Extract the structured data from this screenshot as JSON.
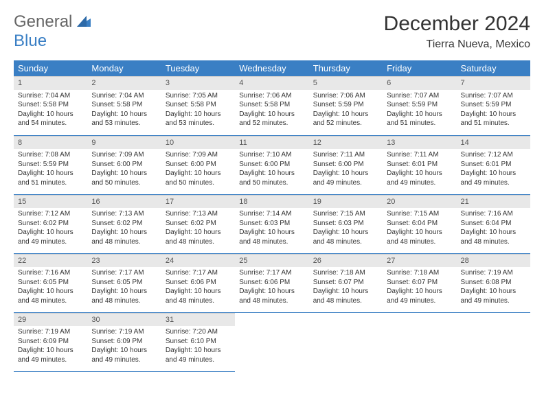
{
  "logo": {
    "line1": "General",
    "line2": "Blue"
  },
  "title": "December 2024",
  "location": "Tierra Nueva, Mexico",
  "colors": {
    "header_bg": "#3a7fc4",
    "header_text": "#ffffff",
    "daynum_bg": "#e8e8e8",
    "border": "#3a7fc4",
    "text": "#333333",
    "background": "#ffffff"
  },
  "weekdays": [
    "Sunday",
    "Monday",
    "Tuesday",
    "Wednesday",
    "Thursday",
    "Friday",
    "Saturday"
  ],
  "days": [
    {
      "n": 1,
      "sunrise": "7:04 AM",
      "sunset": "5:58 PM",
      "dayh": 10,
      "daym": 54
    },
    {
      "n": 2,
      "sunrise": "7:04 AM",
      "sunset": "5:58 PM",
      "dayh": 10,
      "daym": 53
    },
    {
      "n": 3,
      "sunrise": "7:05 AM",
      "sunset": "5:58 PM",
      "dayh": 10,
      "daym": 53
    },
    {
      "n": 4,
      "sunrise": "7:06 AM",
      "sunset": "5:58 PM",
      "dayh": 10,
      "daym": 52
    },
    {
      "n": 5,
      "sunrise": "7:06 AM",
      "sunset": "5:59 PM",
      "dayh": 10,
      "daym": 52
    },
    {
      "n": 6,
      "sunrise": "7:07 AM",
      "sunset": "5:59 PM",
      "dayh": 10,
      "daym": 51
    },
    {
      "n": 7,
      "sunrise": "7:07 AM",
      "sunset": "5:59 PM",
      "dayh": 10,
      "daym": 51
    },
    {
      "n": 8,
      "sunrise": "7:08 AM",
      "sunset": "5:59 PM",
      "dayh": 10,
      "daym": 51
    },
    {
      "n": 9,
      "sunrise": "7:09 AM",
      "sunset": "6:00 PM",
      "dayh": 10,
      "daym": 50
    },
    {
      "n": 10,
      "sunrise": "7:09 AM",
      "sunset": "6:00 PM",
      "dayh": 10,
      "daym": 50
    },
    {
      "n": 11,
      "sunrise": "7:10 AM",
      "sunset": "6:00 PM",
      "dayh": 10,
      "daym": 50
    },
    {
      "n": 12,
      "sunrise": "7:11 AM",
      "sunset": "6:00 PM",
      "dayh": 10,
      "daym": 49
    },
    {
      "n": 13,
      "sunrise": "7:11 AM",
      "sunset": "6:01 PM",
      "dayh": 10,
      "daym": 49
    },
    {
      "n": 14,
      "sunrise": "7:12 AM",
      "sunset": "6:01 PM",
      "dayh": 10,
      "daym": 49
    },
    {
      "n": 15,
      "sunrise": "7:12 AM",
      "sunset": "6:02 PM",
      "dayh": 10,
      "daym": 49
    },
    {
      "n": 16,
      "sunrise": "7:13 AM",
      "sunset": "6:02 PM",
      "dayh": 10,
      "daym": 48
    },
    {
      "n": 17,
      "sunrise": "7:13 AM",
      "sunset": "6:02 PM",
      "dayh": 10,
      "daym": 48
    },
    {
      "n": 18,
      "sunrise": "7:14 AM",
      "sunset": "6:03 PM",
      "dayh": 10,
      "daym": 48
    },
    {
      "n": 19,
      "sunrise": "7:15 AM",
      "sunset": "6:03 PM",
      "dayh": 10,
      "daym": 48
    },
    {
      "n": 20,
      "sunrise": "7:15 AM",
      "sunset": "6:04 PM",
      "dayh": 10,
      "daym": 48
    },
    {
      "n": 21,
      "sunrise": "7:16 AM",
      "sunset": "6:04 PM",
      "dayh": 10,
      "daym": 48
    },
    {
      "n": 22,
      "sunrise": "7:16 AM",
      "sunset": "6:05 PM",
      "dayh": 10,
      "daym": 48
    },
    {
      "n": 23,
      "sunrise": "7:17 AM",
      "sunset": "6:05 PM",
      "dayh": 10,
      "daym": 48
    },
    {
      "n": 24,
      "sunrise": "7:17 AM",
      "sunset": "6:06 PM",
      "dayh": 10,
      "daym": 48
    },
    {
      "n": 25,
      "sunrise": "7:17 AM",
      "sunset": "6:06 PM",
      "dayh": 10,
      "daym": 48
    },
    {
      "n": 26,
      "sunrise": "7:18 AM",
      "sunset": "6:07 PM",
      "dayh": 10,
      "daym": 48
    },
    {
      "n": 27,
      "sunrise": "7:18 AM",
      "sunset": "6:07 PM",
      "dayh": 10,
      "daym": 49
    },
    {
      "n": 28,
      "sunrise": "7:19 AM",
      "sunset": "6:08 PM",
      "dayh": 10,
      "daym": 49
    },
    {
      "n": 29,
      "sunrise": "7:19 AM",
      "sunset": "6:09 PM",
      "dayh": 10,
      "daym": 49
    },
    {
      "n": 30,
      "sunrise": "7:19 AM",
      "sunset": "6:09 PM",
      "dayh": 10,
      "daym": 49
    },
    {
      "n": 31,
      "sunrise": "7:20 AM",
      "sunset": "6:10 PM",
      "dayh": 10,
      "daym": 49
    }
  ],
  "labels": {
    "sunrise": "Sunrise:",
    "sunset": "Sunset:",
    "daylight": "Daylight:",
    "hours": "hours",
    "and": "and",
    "minutes": "minutes."
  },
  "layout": {
    "start_weekday": 0,
    "cols": 7,
    "rows": 5
  }
}
